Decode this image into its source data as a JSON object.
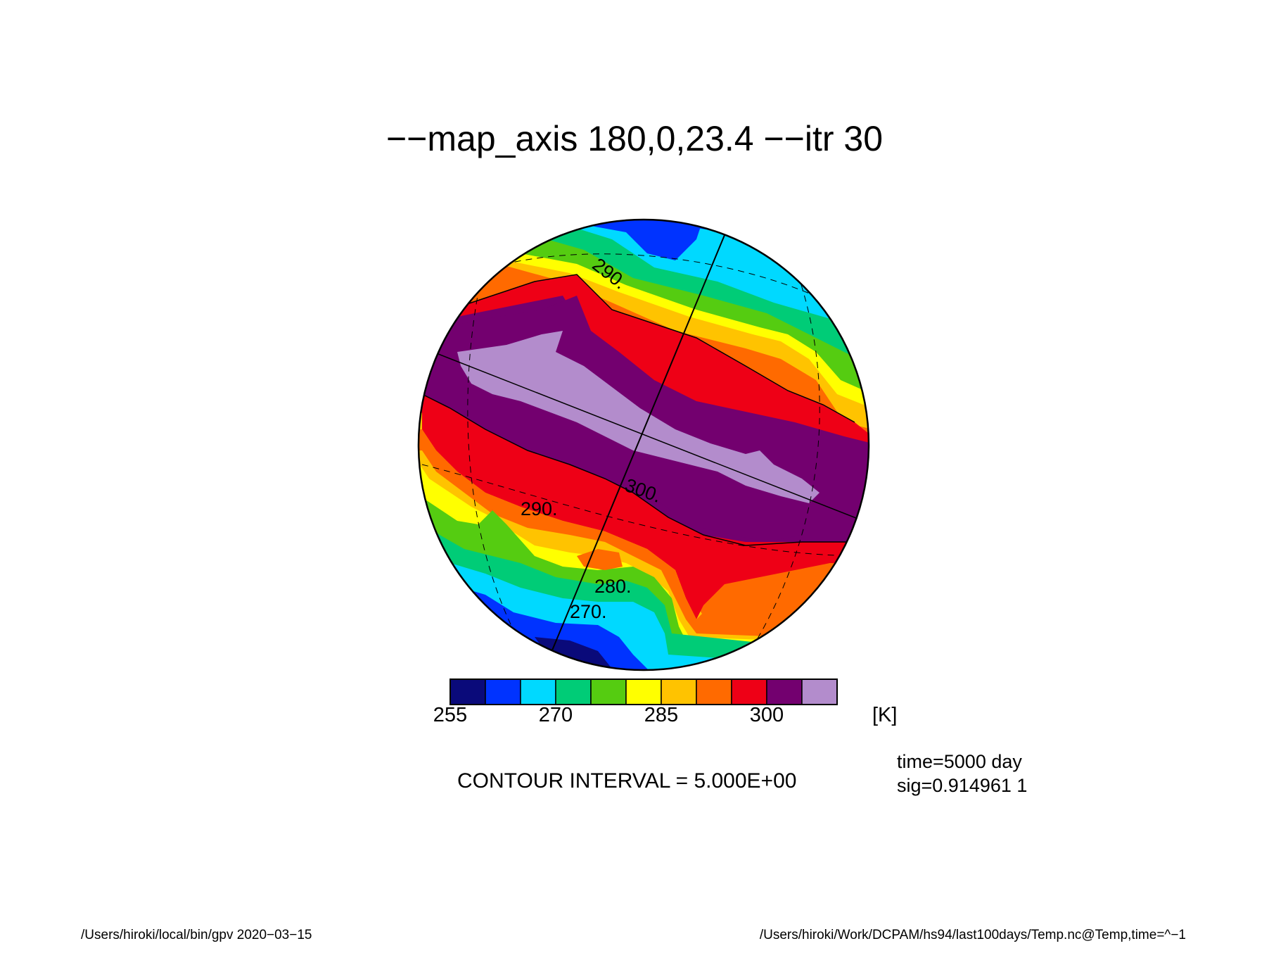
{
  "title": "−−map_axis 180,0,23.4 −−itr 30",
  "map": {
    "projection": "orthographic",
    "map_axis": [
      180,
      0,
      23.4
    ],
    "contour_labels": [
      "290.",
      "300.",
      "290.",
      "280.",
      "270."
    ],
    "colors": [
      "#0a0a7a",
      "#0033ff",
      "#00d9ff",
      "#00cc77",
      "#55cc11",
      "#ffff00",
      "#ffc300",
      "#ff6a00",
      "#ee0016",
      "#73006f",
      "#b38ccc"
    ]
  },
  "colorbar": {
    "levels": [
      255,
      260,
      265,
      270,
      275,
      280,
      285,
      290,
      295,
      300,
      305,
      310
    ],
    "tick_labels": [
      "255",
      "270",
      "285",
      "300"
    ],
    "unit": "[K]"
  },
  "contour_interval": "CONTOUR INTERVAL = 5.000E+00",
  "info": {
    "time": "time=5000 day",
    "sig": "sig=0.914961 1"
  },
  "footer": {
    "left": "/Users/hiroki/local/bin/gpv  2020−03−15",
    "right": "/Users/hiroki/Work/DCPAM/hs94/last100days/Temp.nc@Temp,time=^−1"
  }
}
